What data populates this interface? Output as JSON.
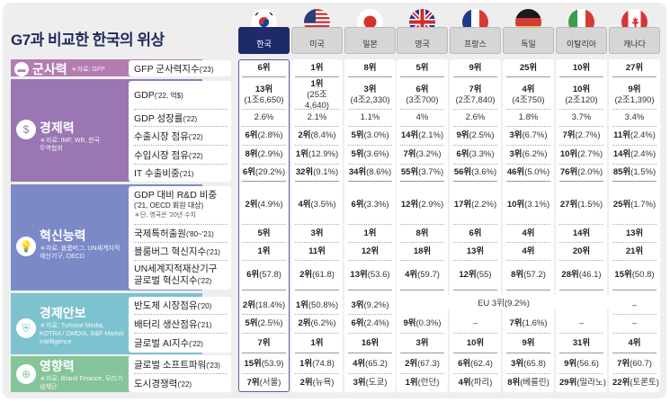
{
  "title": "G7과 비교한 한국의 위상",
  "countries": [
    {
      "name": "한국",
      "flag": "korea-flag-icon",
      "active": true
    },
    {
      "name": "미국",
      "flag": "usa-flag-icon"
    },
    {
      "name": "일본",
      "flag": "japan-flag-icon"
    },
    {
      "name": "영국",
      "flag": "uk-flag-icon"
    },
    {
      "name": "프랑스",
      "flag": "france-flag-icon"
    },
    {
      "name": "독일",
      "flag": "germany-flag-icon"
    },
    {
      "name": "이탈리아",
      "flag": "italy-flag-icon"
    },
    {
      "name": "캐나다",
      "flag": "canada-flag-icon"
    }
  ],
  "categories": [
    {
      "name": "군사력",
      "source": "＊자료: GFP",
      "icon": "tank-icon",
      "color": "#b47cb0",
      "metrics": [
        {
          "label": "GFP 군사력지수",
          "suffix": "('23)"
        }
      ]
    },
    {
      "name": "경제력",
      "source": "＊자료: IMF, WB, 한국무역협회",
      "icon": "money-bag-icon",
      "color": "#9a76b3",
      "metrics": [
        {
          "label": "GDP",
          "suffix": "('22, 억$)"
        },
        {
          "label": "GDP 성장률",
          "suffix": "('22)"
        },
        {
          "label": "수출시장 점유",
          "suffix": "('22)"
        },
        {
          "label": "수입시장 점유",
          "suffix": "('22)"
        },
        {
          "label": "IT 수출비중",
          "suffix": "('21)"
        }
      ]
    },
    {
      "name": "혁신능력",
      "source": "＊자료: 블룸버그, UN세계지적재산기구, OECD",
      "icon": "lightbulb-icon",
      "color": "#7b8ac7",
      "metrics": [
        {
          "label": "GDP 대비 R&D 비중",
          "suffix": "('21, OECD 회원 대상)",
          "note": "＊단, 영국은 '20년 수치"
        },
        {
          "label": "국제특허출원",
          "suffix": "('80~'21)"
        },
        {
          "label": "블룸버그 혁신지수",
          "suffix": "('21)"
        },
        {
          "label": "UN세계지적재산기구 글로벌 혁신지수",
          "suffix": "('22)"
        }
      ]
    },
    {
      "name": "경제안보",
      "source": "＊자료: Turtoise Media, KOTRA / OMDIA, S&P Market Intelligence",
      "icon": "shield-icon",
      "color": "#7dc2cf",
      "metrics": [
        {
          "label": "반도체 시장점유",
          "suffix": "('20)"
        },
        {
          "label": "배터리 생산점유",
          "suffix": "('21)"
        },
        {
          "label": "글로벌 AI지수",
          "suffix": "('22)"
        }
      ]
    },
    {
      "name": "영향력",
      "source": "＊자료: Brand Finance, 모리기념재단",
      "icon": "globe-icon",
      "color": "#86c49a",
      "metrics": [
        {
          "label": "글로벌 소프트파워",
          "suffix": "('23)"
        },
        {
          "label": "도시경쟁력",
          "suffix": "('22)"
        }
      ]
    }
  ],
  "values": {
    "gfp": [
      [
        "6위",
        ""
      ],
      [
        "1위",
        ""
      ],
      [
        "8위",
        ""
      ],
      [
        "5위",
        ""
      ],
      [
        "9위",
        ""
      ],
      [
        "25위",
        ""
      ],
      [
        "10위",
        ""
      ],
      [
        "27위",
        ""
      ]
    ],
    "gdp": [
      [
        "13위",
        "(1조6,650)"
      ],
      [
        "1위",
        "(25조4,640)"
      ],
      [
        "3위",
        "(4조2,330)"
      ],
      [
        "6위",
        "(3조700)"
      ],
      [
        "7위",
        "(2조7,840)"
      ],
      [
        "4위",
        "(4조750)"
      ],
      [
        "10위",
        "(2조120)"
      ],
      [
        "9위",
        "(2조1,390)"
      ]
    ],
    "growth": [
      [
        "",
        "2.6%"
      ],
      [
        "",
        "2.1%"
      ],
      [
        "",
        "1.1%"
      ],
      [
        "",
        "4%"
      ],
      [
        "",
        "2.6%"
      ],
      [
        "",
        "1.8%"
      ],
      [
        "",
        "3.7%"
      ],
      [
        "",
        "3.4%"
      ]
    ],
    "export": [
      [
        "6위",
        "(2.8%)"
      ],
      [
        "2위",
        "(8.4%)"
      ],
      [
        "5위",
        "(3.0%)"
      ],
      [
        "14위",
        "(2.1%)"
      ],
      [
        "9위",
        "(2.5%)"
      ],
      [
        "3위",
        "(6.7%)"
      ],
      [
        "7위",
        "(2.7%)"
      ],
      [
        "11위",
        "(2.4%)"
      ]
    ],
    "import": [
      [
        "8위",
        "(2.9%)"
      ],
      [
        "1위",
        "(12.9%)"
      ],
      [
        "5위",
        "(3.6%)"
      ],
      [
        "7위",
        "(3.2%)"
      ],
      [
        "6위",
        "(3.3%)"
      ],
      [
        "3위",
        "(6.2%)"
      ],
      [
        "10위",
        "(2.7%)"
      ],
      [
        "14위",
        "(2.4%)"
      ]
    ],
    "it": [
      [
        "6위",
        "(29.2%)"
      ],
      [
        "32위",
        "(9.1%)"
      ],
      [
        "34위",
        "(8.6%)"
      ],
      [
        "55위",
        "(3.7%)"
      ],
      [
        "56위",
        "(3.6%)"
      ],
      [
        "46위",
        "(5.0%)"
      ],
      [
        "76위",
        "(2.0%)"
      ],
      [
        "85위",
        "(1.5%)"
      ]
    ],
    "rnd": [
      [
        "2위",
        "(4.9%)"
      ],
      [
        "4위",
        "(3.5%)"
      ],
      [
        "6위",
        "(3.3%)"
      ],
      [
        "12위",
        "(2.9%)"
      ],
      [
        "17위",
        "(2.2%)"
      ],
      [
        "10위",
        "(3.1%)"
      ],
      [
        "27위",
        "(1.5%)"
      ],
      [
        "25위",
        "(1.7%)"
      ]
    ],
    "patent": [
      [
        "5위",
        ""
      ],
      [
        "3위",
        ""
      ],
      [
        "1위",
        ""
      ],
      [
        "8위",
        ""
      ],
      [
        "6위",
        ""
      ],
      [
        "4위",
        ""
      ],
      [
        "14위",
        ""
      ],
      [
        "13위",
        ""
      ]
    ],
    "bloomberg": [
      [
        "1위",
        ""
      ],
      [
        "11위",
        ""
      ],
      [
        "12위",
        ""
      ],
      [
        "18위",
        ""
      ],
      [
        "13위",
        ""
      ],
      [
        "4위",
        ""
      ],
      [
        "20위",
        ""
      ],
      [
        "21위",
        ""
      ]
    ],
    "wipo": [
      [
        "6위",
        "(57.8)"
      ],
      [
        "2위",
        "(61.8)"
      ],
      [
        "13위",
        "(53.6)"
      ],
      [
        "4위",
        "(59.7)"
      ],
      [
        "12위",
        "(55)"
      ],
      [
        "8위",
        "(57.2)"
      ],
      [
        "28위",
        "(46.1)"
      ],
      [
        "15위",
        "(50.8)"
      ]
    ],
    "semi": [
      [
        "2위",
        "(18.4%)"
      ],
      [
        "1위",
        "(50.8%)"
      ],
      [
        "3위",
        "(9.2%)"
      ],
      null,
      null,
      null,
      null,
      [
        "",
        "–"
      ]
    ],
    "semi_eu": "EU 3위(9.2%)",
    "battery": [
      [
        "5위",
        "(2.5%)"
      ],
      [
        "2위",
        "(6.2%)"
      ],
      [
        "6위",
        "(2.4%)"
      ],
      [
        "9위",
        "(0.3%)"
      ],
      [
        "",
        "–"
      ],
      [
        "7위",
        "(1.6%)"
      ],
      [
        "",
        "–"
      ],
      [
        "",
        "–"
      ]
    ],
    "ai": [
      [
        "7위",
        ""
      ],
      [
        "1위",
        ""
      ],
      [
        "16위",
        ""
      ],
      [
        "3위",
        ""
      ],
      [
        "10위",
        ""
      ],
      [
        "9위",
        ""
      ],
      [
        "31위",
        ""
      ],
      [
        "4위",
        ""
      ]
    ],
    "soft": [
      [
        "15위",
        "(53.9)"
      ],
      [
        "1위",
        "(74.8)"
      ],
      [
        "4위",
        "(65.2)"
      ],
      [
        "2위",
        "(67.3)"
      ],
      [
        "6위",
        "(62.4)"
      ],
      [
        "3위",
        "(65.8)"
      ],
      [
        "9위",
        "(56.6)"
      ],
      [
        "7위",
        "(60.7)"
      ]
    ],
    "city": [
      [
        "7위",
        "(서울)"
      ],
      [
        "2위",
        "(뉴욕)"
      ],
      [
        "3위",
        "(도쿄)"
      ],
      [
        "1위",
        "(런던)"
      ],
      [
        "4위",
        "(파리)"
      ],
      [
        "8위",
        "(베를린)"
      ],
      [
        "29위",
        "(밀라노)"
      ],
      [
        "22위",
        "(토론토)"
      ]
    ]
  }
}
